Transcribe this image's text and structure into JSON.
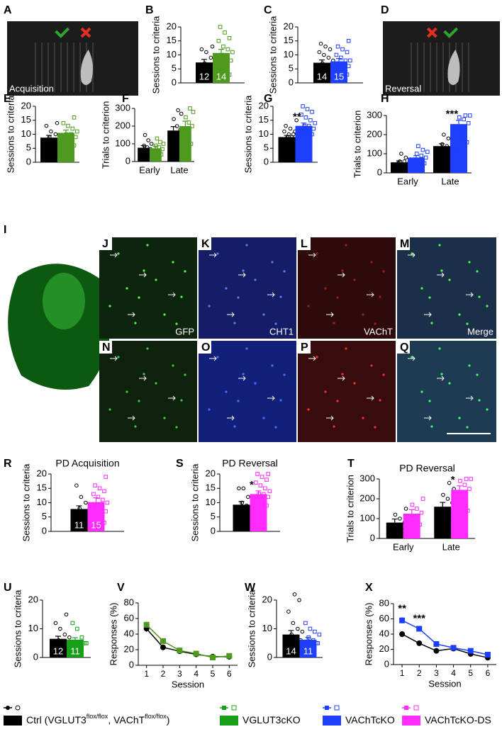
{
  "chart_data": [
    {
      "type": "bar",
      "panel": "B",
      "ylabel": "Sessions to criteria",
      "categories": [
        null
      ],
      "ylim": [
        0,
        20
      ],
      "yticks": [
        0,
        5,
        10,
        15,
        20
      ],
      "series": [
        {
          "color": "#000000",
          "marker": "circle",
          "values": [
            7.3
          ],
          "errors": [
            1.1
          ],
          "n_labels": [
            "12"
          ],
          "points": [
            [
              2,
              4,
              5,
              5,
              6,
              6,
              7,
              8,
              9,
              11,
              12,
              13
            ]
          ]
        },
        {
          "color": "#4e9a1e",
          "marker": "square",
          "values": [
            10.7
          ],
          "errors": [
            1.3
          ],
          "n_labels": [
            "14"
          ],
          "points": [
            [
              2,
              3,
              4,
              6,
              8,
              9,
              10,
              11,
              12,
              13,
              15,
              16,
              18,
              20
            ]
          ]
        }
      ]
    },
    {
      "type": "bar",
      "panel": "C",
      "ylabel": "Sessions to criteria",
      "categories": [
        null
      ],
      "ylim": [
        0,
        20
      ],
      "yticks": [
        0,
        5,
        10,
        15,
        20
      ],
      "series": [
        {
          "color": "#000000",
          "marker": "circle",
          "values": [
            7.2
          ],
          "errors": [
            1.0
          ],
          "n_labels": [
            "14"
          ],
          "points": [
            [
              3,
              4,
              5,
              5,
              6,
              6,
              7,
              8,
              9,
              10,
              11,
              12,
              13,
              14
            ]
          ]
        },
        {
          "color": "#1f3fff",
          "marker": "square",
          "values": [
            7.7
          ],
          "errors": [
            1.0
          ],
          "n_labels": [
            "15"
          ],
          "points": [
            [
              2,
              3,
              4,
              5,
              6,
              6,
              7,
              8,
              8,
              9,
              10,
              11,
              12,
              13,
              15
            ]
          ]
        }
      ]
    },
    {
      "type": "bar",
      "panel": "E",
      "ylabel": "Sessions to criteria",
      "categories": [
        null
      ],
      "ylim": [
        0,
        20
      ],
      "yticks": [
        0,
        5,
        10,
        15,
        20
      ],
      "series": [
        {
          "color": "#000000",
          "marker": "circle",
          "values": [
            8.8
          ],
          "errors": [
            0.8
          ],
          "points": [
            [
              5,
              6,
              7,
              7,
              8,
              8,
              9,
              9,
              10,
              11,
              13,
              14
            ]
          ]
        },
        {
          "color": "#4e9a1e",
          "marker": "square",
          "values": [
            10.5
          ],
          "errors": [
            1.0
          ],
          "points": [
            [
              5,
              6,
              7,
              8,
              9,
              10,
              10,
              11,
              12,
              13,
              14,
              16
            ]
          ]
        }
      ]
    },
    {
      "type": "bar",
      "panel": "F",
      "ylabel": "Trials to criterion",
      "categories": [
        "Early",
        "Late"
      ],
      "ylim": [
        0,
        300
      ],
      "yticks": [
        0,
        100,
        200,
        300
      ],
      "series": [
        {
          "color": "#000000",
          "marker": "circle",
          "values": [
            78,
            175
          ],
          "errors": [
            12,
            22
          ],
          "points": [
            [
              20,
              40,
              50,
              60,
              70,
              80,
              90,
              100,
              120,
              150
            ],
            [
              60,
              90,
              120,
              150,
              180,
              200,
              240,
              270,
              290
            ]
          ]
        },
        {
          "color": "#4e9a1e",
          "marker": "square",
          "values": [
            75,
            200
          ],
          "errors": [
            12,
            28
          ],
          "points": [
            [
              30,
              40,
              50,
              60,
              70,
              80,
              90,
              100,
              110,
              130
            ],
            [
              80,
              100,
              140,
              180,
              200,
              220,
              250,
              280,
              300
            ]
          ]
        }
      ]
    },
    {
      "type": "bar",
      "panel": "G",
      "ylabel": "Sessions to criteria",
      "categories": [
        null
      ],
      "ylim": [
        0,
        20
      ],
      "yticks": [
        0,
        5,
        10,
        15,
        20
      ],
      "series": [
        {
          "color": "#000000",
          "marker": "circle",
          "values": [
            9
          ],
          "errors": [
            0.6
          ],
          "points": [
            [
              6,
              7,
              7,
              8,
              8,
              9,
              9,
              9,
              10,
              10,
              11,
              11,
              12,
              13,
              15
            ]
          ]
        },
        {
          "color": "#1f3fff",
          "marker": "square",
          "values": [
            13
          ],
          "errors": [
            1.0
          ],
          "stars": [
            "**"
          ],
          "points": [
            [
              10,
              10,
              11,
              12,
              12,
              13,
              13,
              14,
              15,
              16,
              17,
              18,
              19,
              20
            ]
          ]
        }
      ]
    },
    {
      "type": "bar",
      "panel": "H",
      "ylabel": "Trials to criterion",
      "categories": [
        "Early",
        "Late"
      ],
      "ylim": [
        0,
        300
      ],
      "yticks": [
        0,
        100,
        200,
        300
      ],
      "series": [
        {
          "color": "#000000",
          "marker": "circle",
          "values": [
            55,
            140
          ],
          "errors": [
            8,
            12
          ],
          "points": [
            [
              20,
              30,
              40,
              50,
              50,
              60,
              60,
              70,
              80,
              100
            ],
            [
              80,
              100,
              110,
              120,
              130,
              140,
              150,
              160,
              180,
              200
            ]
          ]
        },
        {
          "color": "#1f3fff",
          "marker": "square",
          "values": [
            80,
            255
          ],
          "errors": [
            10,
            20
          ],
          "stars": [
            null,
            "***"
          ],
          "points": [
            [
              40,
              50,
              60,
              70,
              80,
              90,
              100,
              110,
              120,
              140
            ],
            [
              120,
              160,
              200,
              240,
              260,
              280,
              290,
              300,
              300
            ]
          ]
        }
      ]
    },
    {
      "type": "bar",
      "panel": "R",
      "title": "PD Acquisition",
      "ylabel": "Sessions to criteria",
      "categories": [
        null
      ],
      "ylim": [
        0,
        20
      ],
      "yticks": [
        0,
        5,
        10,
        15,
        20
      ],
      "series": [
        {
          "color": "#000000",
          "marker": "circle",
          "values": [
            7.8
          ],
          "errors": [
            1.1
          ],
          "n_labels": [
            "11"
          ],
          "points": [
            [
              3,
              4,
              5,
              6,
              7,
              7,
              8,
              9,
              10,
              12,
              16
            ]
          ]
        },
        {
          "color": "#ff2bff",
          "marker": "square",
          "values": [
            10.2
          ],
          "errors": [
            1.5
          ],
          "n_labels": [
            "15"
          ],
          "points": [
            [
              2,
              3,
              4,
              6,
              7,
              8,
              9,
              10,
              11,
              12,
              13,
              14,
              15,
              16,
              19
            ]
          ]
        }
      ]
    },
    {
      "type": "bar",
      "panel": "S",
      "title": "PD Reversal",
      "ylabel": "Sessions to criteria",
      "categories": [
        null
      ],
      "ylim": [
        0,
        20
      ],
      "yticks": [
        0,
        5,
        10,
        15,
        20
      ],
      "series": [
        {
          "color": "#000000",
          "marker": "circle",
          "values": [
            9.3
          ],
          "errors": [
            1.1
          ],
          "points": [
            [
              5,
              6,
              7,
              8,
              8,
              9,
              10,
              11,
              12,
              15,
              15
            ]
          ]
        },
        {
          "color": "#ff2bff",
          "marker": "square",
          "values": [
            13
          ],
          "errors": [
            1.1
          ],
          "stars": [
            "*"
          ],
          "points": [
            [
              8,
              9,
              10,
              11,
              12,
              13,
              13,
              14,
              15,
              16,
              17,
              18,
              19,
              20,
              20
            ]
          ]
        }
      ]
    },
    {
      "type": "bar",
      "panel": "T",
      "title": "PD Reversal",
      "ylabel": "Trials to criterion",
      "categories": [
        "Early",
        "Late"
      ],
      "ylim": [
        0,
        300
      ],
      "yticks": [
        0,
        100,
        200,
        300
      ],
      "series": [
        {
          "color": "#000000",
          "marker": "circle",
          "values": [
            80,
            160
          ],
          "errors": [
            18,
            22
          ],
          "points": [
            [
              20,
              40,
              50,
              60,
              80,
              100,
              120,
              150
            ],
            [
              100,
              120,
              130,
              150,
              180,
              200,
              220,
              250,
              280
            ]
          ]
        },
        {
          "color": "#ff2bff",
          "marker": "square",
          "values": [
            125,
            245
          ],
          "errors": [
            20,
            20
          ],
          "stars": [
            null,
            "*"
          ],
          "points": [
            [
              50,
              70,
              90,
              110,
              130,
              150,
              170,
              200
            ],
            [
              100,
              140,
              180,
              220,
              250,
              270,
              290,
              300,
              300
            ]
          ]
        }
      ]
    },
    {
      "type": "bar",
      "panel": "U",
      "ylabel": "Sessions to criteria",
      "categories": [
        null
      ],
      "ylim": [
        0,
        20
      ],
      "yticks": [
        0,
        10,
        20
      ],
      "series": [
        {
          "color": "#000000",
          "marker": "circle",
          "values": [
            6.5
          ],
          "errors": [
            0.9
          ],
          "n_labels": [
            "12"
          ],
          "points": [
            [
              5,
              5,
              5,
              5,
              5,
              5,
              6,
              7,
              8,
              10,
              12,
              15
            ]
          ]
        },
        {
          "color": "#17a017",
          "marker": "square",
          "values": [
            6.2
          ],
          "errors": [
            0.7
          ],
          "n_labels": [
            "11"
          ],
          "points": [
            [
              5,
              5,
              5,
              5,
              5,
              5,
              5,
              5,
              7,
              10,
              12
            ]
          ]
        }
      ]
    },
    {
      "type": "line",
      "panel": "V",
      "ylabel": "Responses (%)",
      "xlabel": "Session",
      "x": [
        1,
        2,
        3,
        4,
        5,
        6
      ],
      "xlim": [
        0.5,
        6.5
      ],
      "xticks": [
        1,
        2,
        3,
        4,
        5,
        6
      ],
      "ylim": [
        0,
        80
      ],
      "yticks": [
        0,
        20,
        40,
        60,
        80
      ],
      "series": [
        {
          "color": "#000000",
          "marker": "circle",
          "values": [
            47,
            23,
            18,
            14,
            11,
            11
          ],
          "errors": [
            4,
            3,
            2,
            2,
            2,
            2
          ]
        },
        {
          "color": "#4e9a1e",
          "marker": "square",
          "values": [
            52,
            31,
            19,
            15,
            10,
            12
          ],
          "errors": [
            4,
            3,
            2,
            2,
            2,
            2
          ]
        }
      ]
    },
    {
      "type": "bar",
      "panel": "W",
      "ylabel": "Sessions to criteria",
      "categories": [
        null
      ],
      "ylim": [
        0,
        20
      ],
      "yticks": [
        0,
        10,
        20
      ],
      "series": [
        {
          "color": "#000000",
          "marker": "circle",
          "values": [
            8
          ],
          "errors": [
            1.4
          ],
          "n_labels": [
            "14"
          ],
          "points": [
            [
              5,
              5,
              5,
              5,
              6,
              6,
              8,
              9,
              10,
              12,
              16,
              20,
              22,
              5
            ]
          ]
        },
        {
          "color": "#1f3fff",
          "marker": "square",
          "values": [
            6.2
          ],
          "errors": [
            0.8
          ],
          "n_labels": [
            "11"
          ],
          "points": [
            [
              5,
              5,
              5,
              5,
              5,
              6,
              7,
              8,
              9,
              10,
              12
            ]
          ]
        }
      ]
    },
    {
      "type": "line",
      "panel": "X",
      "ylabel": "Responses (%)",
      "xlabel": "Session",
      "x": [
        1,
        2,
        3,
        4,
        5,
        6
      ],
      "xlim": [
        0.5,
        6.5
      ],
      "xticks": [
        1,
        2,
        3,
        4,
        5,
        6
      ],
      "ylim": [
        0,
        80
      ],
      "yticks": [
        0,
        20,
        40,
        60,
        80
      ],
      "annotations": [
        "**",
        "***",
        null,
        null,
        null,
        null
      ],
      "series": [
        {
          "color": "#000000",
          "marker": "circle",
          "values": [
            40,
            28,
            18,
            21,
            14,
            9
          ],
          "errors": [
            4,
            3,
            2,
            2,
            2,
            1
          ]
        },
        {
          "color": "#1f3fff",
          "marker": "square",
          "values": [
            58,
            47,
            27,
            22,
            18,
            13
          ],
          "errors": [
            4,
            2,
            2,
            2,
            1,
            1
          ]
        }
      ]
    }
  ],
  "images": [
    {
      "panel": "A",
      "label": "Acquisition"
    },
    {
      "panel": "D",
      "label": "Reversal"
    },
    {
      "panel": "I"
    },
    {
      "panel": "J",
      "label": "GFP"
    },
    {
      "panel": "K",
      "label": "CHT1"
    },
    {
      "panel": "L",
      "label": "VAChT"
    },
    {
      "panel": "M",
      "label": "Merge"
    },
    {
      "panel": "N"
    },
    {
      "panel": "O"
    },
    {
      "panel": "P"
    },
    {
      "panel": "Q"
    }
  ],
  "legend": [
    {
      "parts": [
        "Ctrl (VGLUT3",
        "flox/flox",
        ", VAChT",
        "flox/flox",
        ")"
      ],
      "color": "#000000"
    },
    {
      "parts": [
        "VGLUT3cKO"
      ],
      "color": "#17a017"
    },
    {
      "parts": [
        "VAChTcKO"
      ],
      "color": "#1f3fff"
    },
    {
      "parts": [
        "VAChTcKO-DS"
      ],
      "color": "#ff2bff"
    }
  ]
}
